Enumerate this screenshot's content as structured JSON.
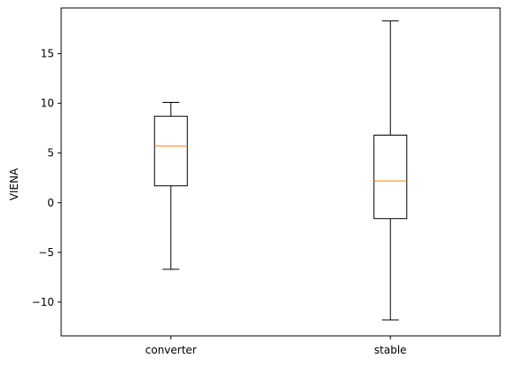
{
  "chart_data": {
    "type": "box",
    "title": "",
    "xlabel": "",
    "ylabel": "VIENA",
    "ylim": [
      -13.4,
      19.6
    ],
    "yticks": [
      -10,
      -5,
      0,
      5,
      10,
      15
    ],
    "ytick_labels": [
      "−10",
      "−5",
      "0",
      "5",
      "10",
      "15"
    ],
    "categories": [
      "converter",
      "stable"
    ],
    "boxes": [
      {
        "label": "converter",
        "whisker_low": -6.7,
        "q1": 1.7,
        "median": 5.7,
        "q3": 8.7,
        "whisker_high": 10.1
      },
      {
        "label": "stable",
        "whisker_low": -11.8,
        "q1": -1.6,
        "median": 2.2,
        "q3": 6.8,
        "whisker_high": 18.3
      }
    ],
    "grid": false,
    "colors": {
      "box": "#000000",
      "median": "#ff7f0e"
    }
  }
}
